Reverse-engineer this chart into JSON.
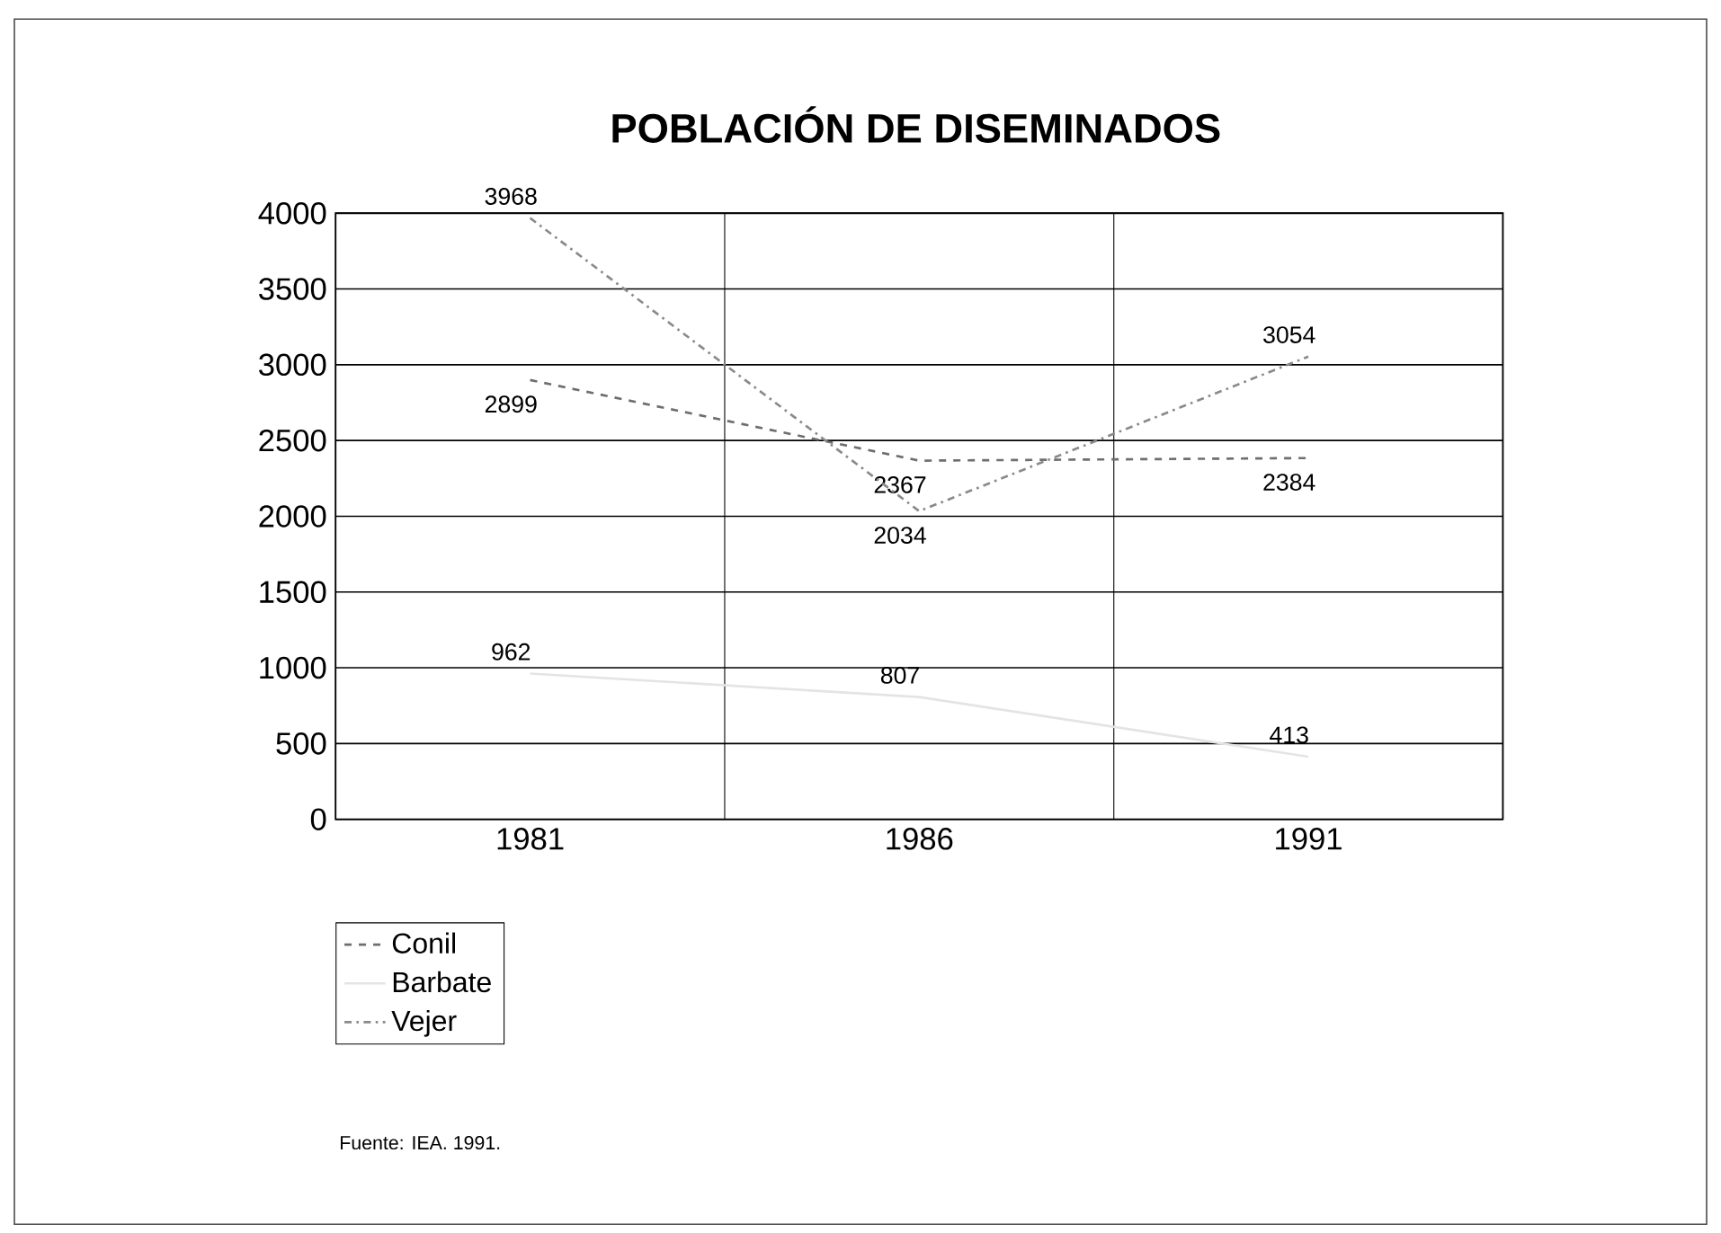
{
  "chart_data": {
    "type": "line",
    "title": "POBLACIÓN DE DISEMINADOS",
    "categories": [
      "1981",
      "1986",
      "1991"
    ],
    "series": [
      {
        "name": "Conil",
        "color": "#6e6e6e",
        "line_style": "dashed",
        "values": [
          2899,
          2367,
          2384
        ]
      },
      {
        "name": "Barbate",
        "color": "#e4e4e4",
        "line_style": "solid",
        "values": [
          962,
          807,
          413
        ]
      },
      {
        "name": "Vejer",
        "color": "#8a8a8a",
        "line_style": "dotted",
        "values": [
          3968,
          2034,
          3054
        ]
      }
    ],
    "ylim": [
      0,
      4000
    ],
    "yticks": [
      0,
      500,
      1000,
      1500,
      2000,
      2500,
      3000,
      3500,
      4000
    ],
    "grid": true,
    "legend": "bottom left",
    "marker": "none",
    "data_labels": true,
    "annotations": [
      "Fuente: IEA. 1991."
    ]
  }
}
